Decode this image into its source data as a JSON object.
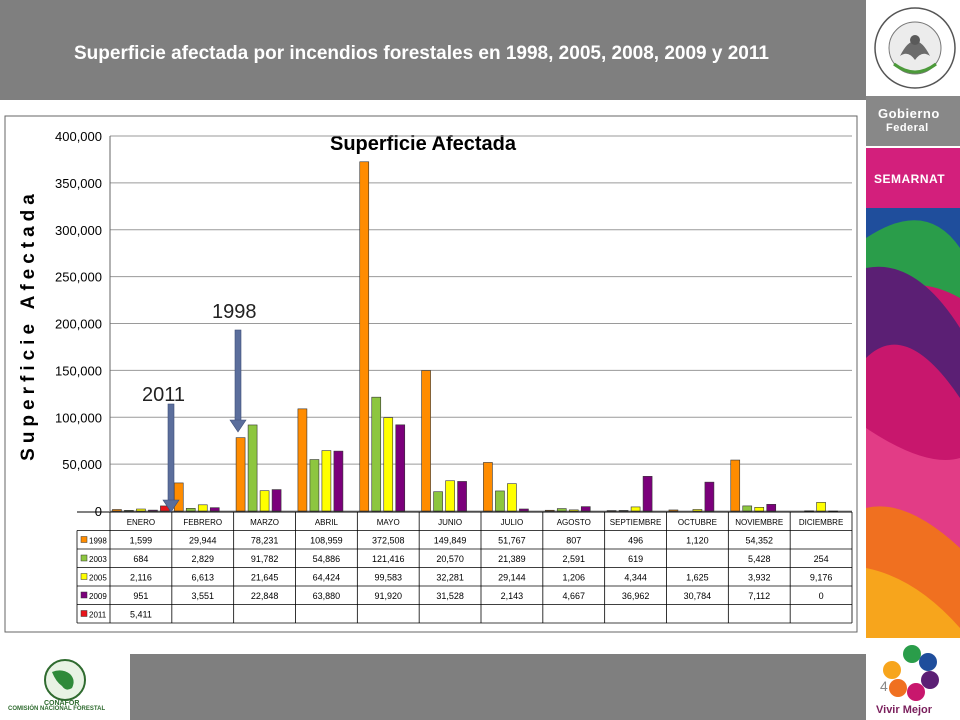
{
  "header": {
    "title": "Superficie afectada por incendios forestales en 1998, 2005, 2008, 2009 y 2011"
  },
  "sidebar": {
    "gobierno_line1": "Gobierno",
    "gobierno_line2": "Federal",
    "semarnat": "SEMARNAT",
    "seal_text": "ESTADOS UNIDOS MEXICANOS"
  },
  "footer": {
    "conafor_label": "COMISIÓN NACIONAL FORESTAL",
    "conafor_short": "CONAFOR",
    "vivir_mejor": "Vivir Mejor",
    "page_number": "4"
  },
  "colors": {
    "header_bg": "#7f7f7f",
    "s1998": "#ff8c00",
    "s2003": "#8dc63f",
    "s2005": "#ffff00",
    "s2009": "#7b007b",
    "s2011": "#e8141b",
    "magenta": "#d31f7c"
  },
  "annotations": {
    "a1998": "1998",
    "a2011": "2011"
  },
  "chart_data": {
    "type": "bar",
    "title": "Superficie Afectada",
    "ylabel": "Superficie Afectada",
    "xlabel": "",
    "ylim": [
      0,
      400000
    ],
    "yticks": [
      "0",
      "50,000",
      "100,000",
      "150,000",
      "200,000",
      "250,000",
      "300,000",
      "350,000",
      "400,000"
    ],
    "categories": [
      "ENERO",
      "FEBRERO",
      "MARZO",
      "ABRIL",
      "MAYO",
      "JUNIO",
      "JULIO",
      "AGOSTO",
      "SEPTIEMBRE",
      "OCTUBRE",
      "NOVIEMBRE",
      "DICIEMBRE"
    ],
    "series": [
      {
        "name": "1998",
        "color": "#ff8c00",
        "values": [
          1599,
          29944,
          78231,
          108959,
          372508,
          149849,
          51767,
          807,
          496,
          1120,
          54352,
          null
        ],
        "labels": [
          "1,599",
          "29,944",
          "78,231",
          "108,959",
          "372,508",
          "149,849",
          "51,767",
          "807",
          "496",
          "1,120",
          "54,352",
          ""
        ]
      },
      {
        "name": "2003",
        "color": "#8dc63f",
        "values": [
          684,
          2829,
          91782,
          54886,
          121416,
          20570,
          21389,
          2591,
          619,
          null,
          5428,
          254
        ],
        "labels": [
          "684",
          "2,829",
          "91,782",
          "54,886",
          "121,416",
          "20,570",
          "21,389",
          "2,591",
          "619",
          "",
          "5,428",
          "254"
        ]
      },
      {
        "name": "2005",
        "color": "#ffff00",
        "values": [
          2116,
          6613,
          21645,
          64424,
          99583,
          32281,
          29144,
          1206,
          4344,
          1625,
          3932,
          9176
        ],
        "labels": [
          "2,116",
          "6,613",
          "21,645",
          "64,424",
          "99,583",
          "32,281",
          "29,144",
          "1,206",
          "4,344",
          "1,625",
          "3,932",
          "9,176"
        ]
      },
      {
        "name": "2009",
        "color": "#7b007b",
        "values": [
          951,
          3551,
          22848,
          63880,
          91920,
          31528,
          2143,
          4667,
          36962,
          30784,
          7112,
          0
        ],
        "labels": [
          "951",
          "3,551",
          "22,848",
          "63,880",
          "91,920",
          "31,528",
          "2,143",
          "4,667",
          "36,962",
          "30,784",
          "7,112",
          "0"
        ]
      },
      {
        "name": "2011",
        "color": "#e8141b",
        "values": [
          5411,
          null,
          null,
          null,
          null,
          null,
          null,
          null,
          null,
          null,
          null,
          null
        ],
        "labels": [
          "5,411",
          "",
          "",
          "",
          "",
          "",
          "",
          "",
          "",
          "",
          "",
          ""
        ]
      }
    ]
  }
}
